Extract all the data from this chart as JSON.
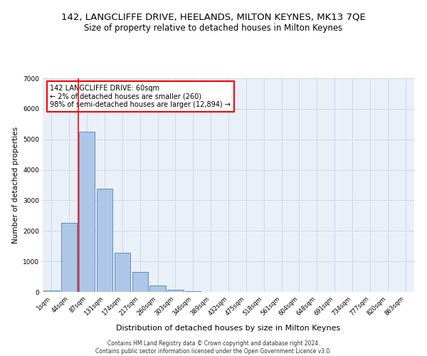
{
  "title_line1": "142, LANGCLIFFE DRIVE, HEELANDS, MILTON KEYNES, MK13 7QE",
  "title_line2": "Size of property relative to detached houses in Milton Keynes",
  "xlabel": "Distribution of detached houses by size in Milton Keynes",
  "ylabel": "Number of detached properties",
  "footnote": "Contains HM Land Registry data © Crown copyright and database right 2024.\nContains public sector information licensed under the Open Government Licence v3.0.",
  "categories": [
    "1sqm",
    "44sqm",
    "87sqm",
    "131sqm",
    "174sqm",
    "217sqm",
    "260sqm",
    "303sqm",
    "346sqm",
    "389sqm",
    "432sqm",
    "475sqm",
    "518sqm",
    "561sqm",
    "604sqm",
    "648sqm",
    "691sqm",
    "734sqm",
    "777sqm",
    "820sqm",
    "863sqm"
  ],
  "bar_values": [
    50,
    2270,
    5250,
    3380,
    1280,
    660,
    200,
    80,
    20,
    5,
    2,
    1,
    0,
    0,
    0,
    0,
    0,
    0,
    0,
    0,
    0
  ],
  "bar_color": "#aec6e8",
  "bar_edge_color": "#5a8fc0",
  "marker_color": "red",
  "annotation_text": "142 LANGCLIFFE DRIVE: 60sqm\n← 2% of detached houses are smaller (260)\n98% of semi-detached houses are larger (12,894) →",
  "annotation_box_color": "white",
  "annotation_box_edge_color": "red",
  "ylim": [
    0,
    7000
  ],
  "yticks": [
    0,
    1000,
    2000,
    3000,
    4000,
    5000,
    6000,
    7000
  ],
  "grid_color": "#d0d8e8",
  "bg_color": "#eaf0f8",
  "title_fontsize": 9.5,
  "subtitle_fontsize": 8.5,
  "xlabel_fontsize": 8,
  "ylabel_fontsize": 7.5,
  "footnote_fontsize": 5.5
}
